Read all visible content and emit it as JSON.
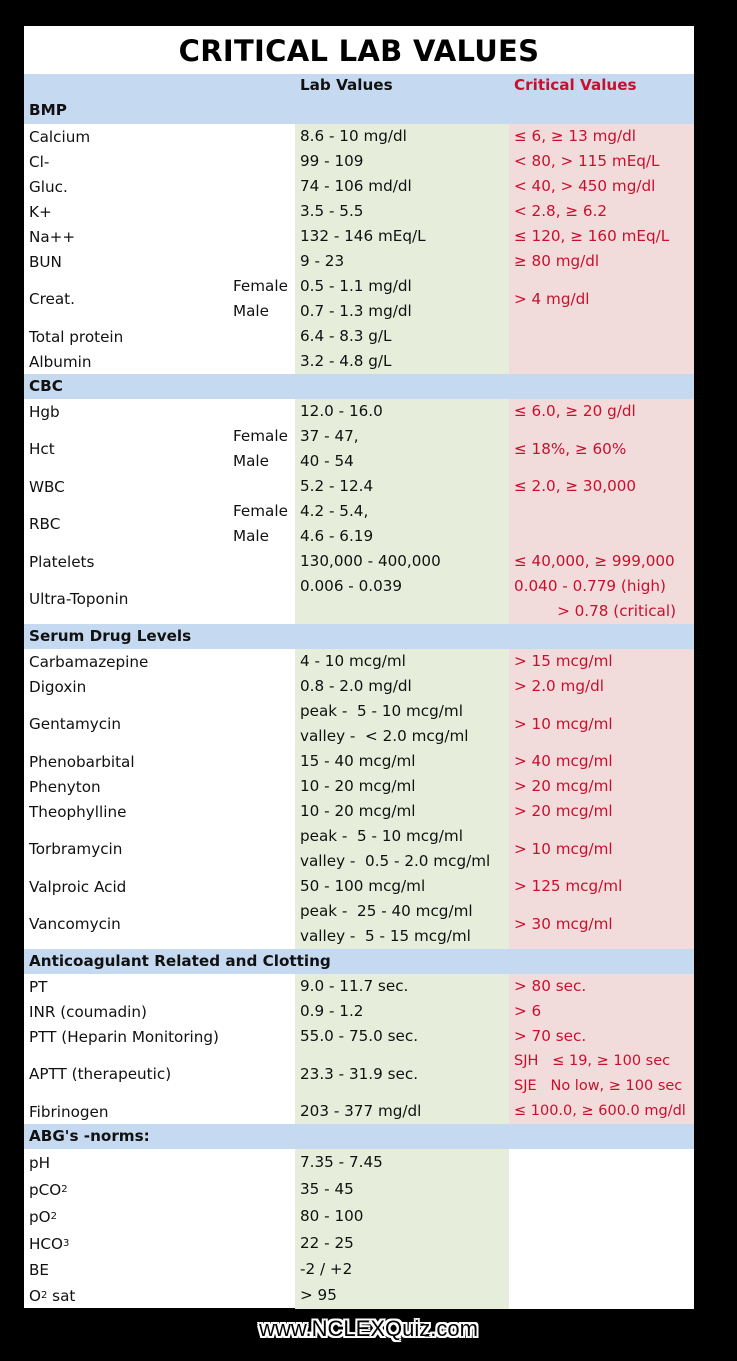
{
  "title": "CRITICAL LAB VALUES",
  "columns": {
    "lab": "Lab Values",
    "critical": "Critical Values"
  },
  "colors": {
    "header_bg": "#c5d9f1",
    "lab_bg": "#e6eedb",
    "crit_bg": "#f2dbdb",
    "crit_text": "#c8102e"
  },
  "bmp": {
    "heading": "BMP",
    "calcium": {
      "name": "Calcium",
      "lab": "8.6 - 10 mg/dl",
      "crit": "≤ 6, ≥ 13 mg/dl"
    },
    "cl": {
      "name": "Cl-",
      "lab": "99 - 109",
      "crit": "< 80, > 115 mEq/L"
    },
    "gluc": {
      "name": "Gluc.",
      "lab": "74 - 106 md/dl",
      "crit": "< 40, > 450 mg/dl"
    },
    "k": {
      "name": "K+",
      "lab": "3.5 - 5.5",
      "crit": "< 2.8, ≥ 6.2"
    },
    "na": {
      "name": "Na++",
      "lab": "132 - 146 mEq/L",
      "crit": "≤ 120, ≥ 160 mEq/L"
    },
    "bun": {
      "name": "BUN",
      "lab": "9 - 23",
      "crit": "≥ 80 mg/dl"
    },
    "creat": {
      "name": "Creat.",
      "female": "Female",
      "male": "Male",
      "lab_f": "0.5 - 1.1 mg/dl",
      "lab_m": "0.7 - 1.3 mg/dl",
      "crit": "> 4 mg/dl"
    },
    "protein": {
      "name": "Total protein",
      "lab": "6.4 - 8.3 g/L"
    },
    "albumin": {
      "name": "Albumin",
      "lab": "3.2 - 4.8 g/L"
    }
  },
  "cbc": {
    "heading": "CBC",
    "hgb": {
      "name": "Hgb",
      "lab": "12.0 - 16.0",
      "crit": "≤ 6.0, ≥ 20 g/dl"
    },
    "hct": {
      "name": "Hct",
      "female": "Female",
      "male": "Male",
      "lab_f": "37 - 47,",
      "lab_m": "40 - 54",
      "crit": "≤ 18%, ≥ 60%"
    },
    "wbc": {
      "name": "WBC",
      "lab": "5.2 - 12.4",
      "crit": "≤ 2.0, ≥ 30,000"
    },
    "rbc": {
      "name": "RBC",
      "female": "Female",
      "male": "Male",
      "lab_f": "4.2 - 5.4,",
      "lab_m": "4.6 - 6.19"
    },
    "platelets": {
      "name": "Platelets",
      "lab": "130,000 - 400,000",
      "crit": "≤ 40,000, ≥ 999,000"
    },
    "troponin": {
      "name": "Ultra-Toponin",
      "lab": "0.006 - 0.039",
      "crit1": "0.040 - 0.779 (high)",
      "crit2": "> 0.78 (critical)"
    }
  },
  "drugs": {
    "heading": "Serum Drug Levels",
    "carbamazepine": {
      "name": "Carbamazepine",
      "lab": "4 - 10 mcg/ml",
      "crit": "> 15 mcg/ml"
    },
    "digoxin": {
      "name": "Digoxin",
      "lab": "0.8 - 2.0 mg/dl",
      "crit": "> 2.0 mg/dl"
    },
    "gentamycin": {
      "name": "Gentamycin",
      "lab1": "peak -  5 - 10 mcg/ml",
      "lab2": "valley -  < 2.0 mcg/ml",
      "crit": "> 10 mcg/ml"
    },
    "phenobarbital": {
      "name": "Phenobarbital",
      "lab": "15 - 40 mcg/ml",
      "crit": "> 40 mcg/ml"
    },
    "phenyton": {
      "name": "Phenyton",
      "lab": "10 - 20 mcg/ml",
      "crit": "> 20 mcg/ml"
    },
    "theophylline": {
      "name": "Theophylline",
      "lab": "10 - 20 mcg/ml",
      "crit": "> 20 mcg/ml"
    },
    "torbramycin": {
      "name": "Torbramycin",
      "lab1": "peak -  5 - 10 mcg/ml",
      "lab2": "valley -  0.5 - 2.0 mcg/ml",
      "crit": "> 10 mcg/ml"
    },
    "valproic": {
      "name": "Valproic Acid",
      "lab": "50 - 100 mcg/ml",
      "crit": "> 125 mcg/ml"
    },
    "vancomycin": {
      "name": "Vancomycin",
      "lab1": "peak -  25 - 40 mcg/ml",
      "lab2": "valley -  5 - 15 mcg/ml",
      "crit": "> 30 mcg/ml"
    }
  },
  "clotting": {
    "heading": "Anticoagulant Related and Clotting",
    "pt": {
      "name": "PT",
      "lab": "9.0 - 11.7 sec.",
      "crit": "> 80 sec."
    },
    "inr": {
      "name": "INR (coumadin)",
      "lab": "0.9 - 1.2",
      "crit": "> 6"
    },
    "ptt": {
      "name": "PTT (Heparin Monitoring)",
      "lab": "55.0 - 75.0 sec.",
      "crit": "> 70 sec."
    },
    "aptt": {
      "name": "APTT (therapeutic)",
      "lab": "23.3 - 31.9 sec.",
      "crit1": "SJH   ≤ 19, ≥ 100 sec",
      "crit2": "SJE   No low, ≥ 100 sec"
    },
    "fibrinogen": {
      "name": "Fibrinogen",
      "lab": "203 - 377 mg/dl",
      "crit": "≤ 100.0, ≥ 600.0 mg/dl"
    }
  },
  "abg": {
    "heading": "ABG's -norms:",
    "ph": {
      "name": "pH",
      "lab": "7.35 - 7.45"
    },
    "pco2": {
      "name": "pCO",
      "sub": "2",
      "lab": "35 - 45"
    },
    "po2": {
      "name": "pO",
      "sub": "2",
      "lab": "80 - 100"
    },
    "hco3": {
      "name": "HCO",
      "sub": "3",
      "lab": "22 - 25"
    },
    "be": {
      "name": "BE",
      "lab": "-2 / +2"
    },
    "o2sat": {
      "name": "O",
      "sub": "2",
      "name2": " sat",
      "lab": "> 95"
    }
  },
  "footer": "www.NCLEXQuiz.com"
}
